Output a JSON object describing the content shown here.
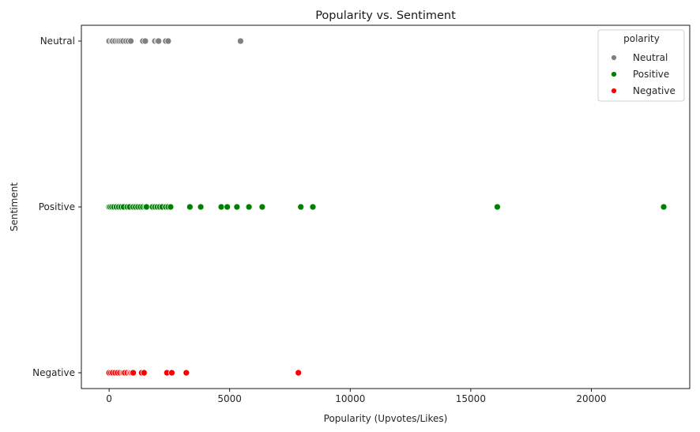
{
  "chart_data": {
    "type": "scatter",
    "title": "Popularity vs. Sentiment",
    "xlabel": "Popularity (Upvotes/Likes)",
    "ylabel": "Sentiment",
    "xlim": [
      -1150,
      24080
    ],
    "x_ticks": [
      0,
      5000,
      10000,
      15000,
      20000
    ],
    "y_categories": [
      "Neutral",
      "Positive",
      "Negative"
    ],
    "grid": false,
    "legend": {
      "title": "polarity",
      "placement": "top-right",
      "entries": [
        "Neutral",
        "Positive",
        "Negative"
      ]
    },
    "series": [
      {
        "name": "Neutral",
        "color": "#808080",
        "y": "Neutral",
        "x": [
          0,
          100,
          150,
          250,
          350,
          420,
          500,
          580,
          700,
          800,
          900,
          1400,
          1500,
          1900,
          2000,
          2050,
          2350,
          2450,
          5450
        ]
      },
      {
        "name": "Positive",
        "color": "#008000",
        "y": "Positive",
        "x": [
          0,
          50,
          120,
          200,
          300,
          400,
          500,
          600,
          750,
          850,
          1000,
          1100,
          1200,
          1300,
          1400,
          1500,
          1550,
          1800,
          1900,
          2000,
          2100,
          2200,
          2350,
          2450,
          2550,
          3350,
          3800,
          4650,
          4900,
          5300,
          5800,
          6350,
          7950,
          8450,
          16100,
          23000
        ]
      },
      {
        "name": "Negative",
        "color": "#ff0000",
        "y": "Negative",
        "x": [
          0,
          80,
          150,
          250,
          350,
          450,
          550,
          600,
          650,
          750,
          850,
          900,
          950,
          1000,
          1350,
          1450,
          2400,
          2600,
          3200,
          7850
        ]
      }
    ]
  }
}
